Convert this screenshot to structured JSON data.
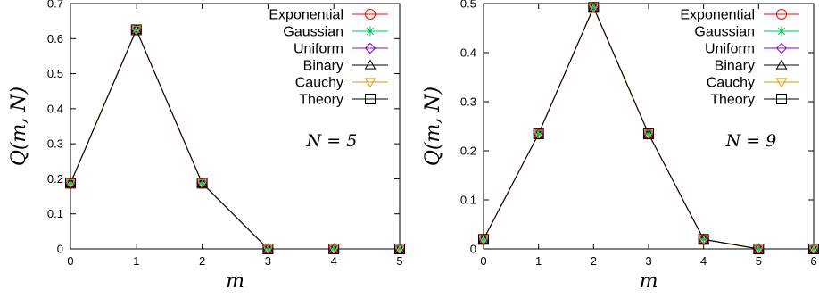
{
  "chart_data": [
    {
      "type": "line",
      "annotation": "N = 5",
      "xlabel": "m",
      "ylabel": "Q(m, N)",
      "xlim": [
        0,
        5
      ],
      "ylim": [
        0,
        0.7
      ],
      "x_ticks": [
        "0",
        "1",
        "2",
        "3",
        "4",
        "5"
      ],
      "y_ticks": [
        "0",
        "0.1",
        "0.2",
        "0.3",
        "0.4",
        "0.5",
        "0.6",
        "0.7"
      ],
      "legend_position": "top-right",
      "grid": false,
      "series": [
        {
          "name": "Exponential",
          "color": "#ff0000",
          "marker": "circle",
          "x": [
            0,
            1,
            2,
            3,
            4,
            5
          ],
          "y": [
            0.1875,
            0.625,
            0.1875,
            0,
            0,
            0
          ]
        },
        {
          "name": "Gaussian",
          "color": "#00c060",
          "marker": "star",
          "x": [
            0,
            1,
            2,
            3,
            4,
            5
          ],
          "y": [
            0.1875,
            0.625,
            0.1875,
            0,
            0,
            0
          ]
        },
        {
          "name": "Uniform",
          "color": "#9400d3",
          "marker": "diamond",
          "x": [
            0,
            1,
            2,
            3,
            4,
            5
          ],
          "y": [
            0.1875,
            0.625,
            0.1875,
            0,
            0,
            0
          ]
        },
        {
          "name": "Binary",
          "color": "#000000",
          "marker": "triangle",
          "x": [
            0,
            1,
            2,
            3,
            4,
            5
          ],
          "y": [
            0.1875,
            0.625,
            0.1875,
            0,
            0,
            0
          ]
        },
        {
          "name": "Cauchy",
          "color": "#e69f00",
          "marker": "triangle-down",
          "x": [
            0,
            1,
            2,
            3,
            4,
            5
          ],
          "y": [
            0.1875,
            0.625,
            0.1875,
            0,
            0,
            0
          ]
        },
        {
          "name": "Theory",
          "color": "#000000",
          "marker": "square",
          "x": [
            0,
            1,
            2,
            3,
            4,
            5
          ],
          "y": [
            0.1875,
            0.625,
            0.1875,
            0,
            0,
            0
          ]
        }
      ]
    },
    {
      "type": "line",
      "annotation": "N = 9",
      "xlabel": "m",
      "ylabel": "Q(m, N)",
      "xlim": [
        0,
        6
      ],
      "ylim": [
        0,
        0.5
      ],
      "x_ticks": [
        "0",
        "1",
        "2",
        "3",
        "4",
        "5",
        "6"
      ],
      "y_ticks": [
        "0",
        "0.1",
        "0.2",
        "0.3",
        "0.4",
        "0.5"
      ],
      "legend_position": "top-right",
      "grid": false,
      "series": [
        {
          "name": "Exponential",
          "color": "#ff0000",
          "marker": "circle",
          "x": [
            0,
            1,
            2,
            3,
            4,
            5,
            6
          ],
          "y": [
            0.0195,
            0.2344,
            0.4922,
            0.2344,
            0.0195,
            0,
            0
          ]
        },
        {
          "name": "Gaussian",
          "color": "#00c060",
          "marker": "star",
          "x": [
            0,
            1,
            2,
            3,
            4,
            5,
            6
          ],
          "y": [
            0.0195,
            0.2344,
            0.4922,
            0.2344,
            0.0195,
            0,
            0
          ]
        },
        {
          "name": "Uniform",
          "color": "#9400d3",
          "marker": "diamond",
          "x": [
            0,
            1,
            2,
            3,
            4,
            5,
            6
          ],
          "y": [
            0.0195,
            0.2344,
            0.4922,
            0.2344,
            0.0195,
            0,
            0
          ]
        },
        {
          "name": "Binary",
          "color": "#000000",
          "marker": "triangle",
          "x": [
            0,
            1,
            2,
            3,
            4,
            5,
            6
          ],
          "y": [
            0.0195,
            0.2344,
            0.4922,
            0.2344,
            0.0195,
            0,
            0
          ]
        },
        {
          "name": "Cauchy",
          "color": "#e69f00",
          "marker": "triangle-down",
          "x": [
            0,
            1,
            2,
            3,
            4,
            5,
            6
          ],
          "y": [
            0.0195,
            0.2344,
            0.4922,
            0.2344,
            0.0195,
            0,
            0
          ]
        },
        {
          "name": "Theory",
          "color": "#000000",
          "marker": "square",
          "x": [
            0,
            1,
            2,
            3,
            4,
            5,
            6
          ],
          "y": [
            0.0195,
            0.2344,
            0.4922,
            0.2344,
            0.0195,
            0,
            0
          ]
        }
      ]
    }
  ]
}
